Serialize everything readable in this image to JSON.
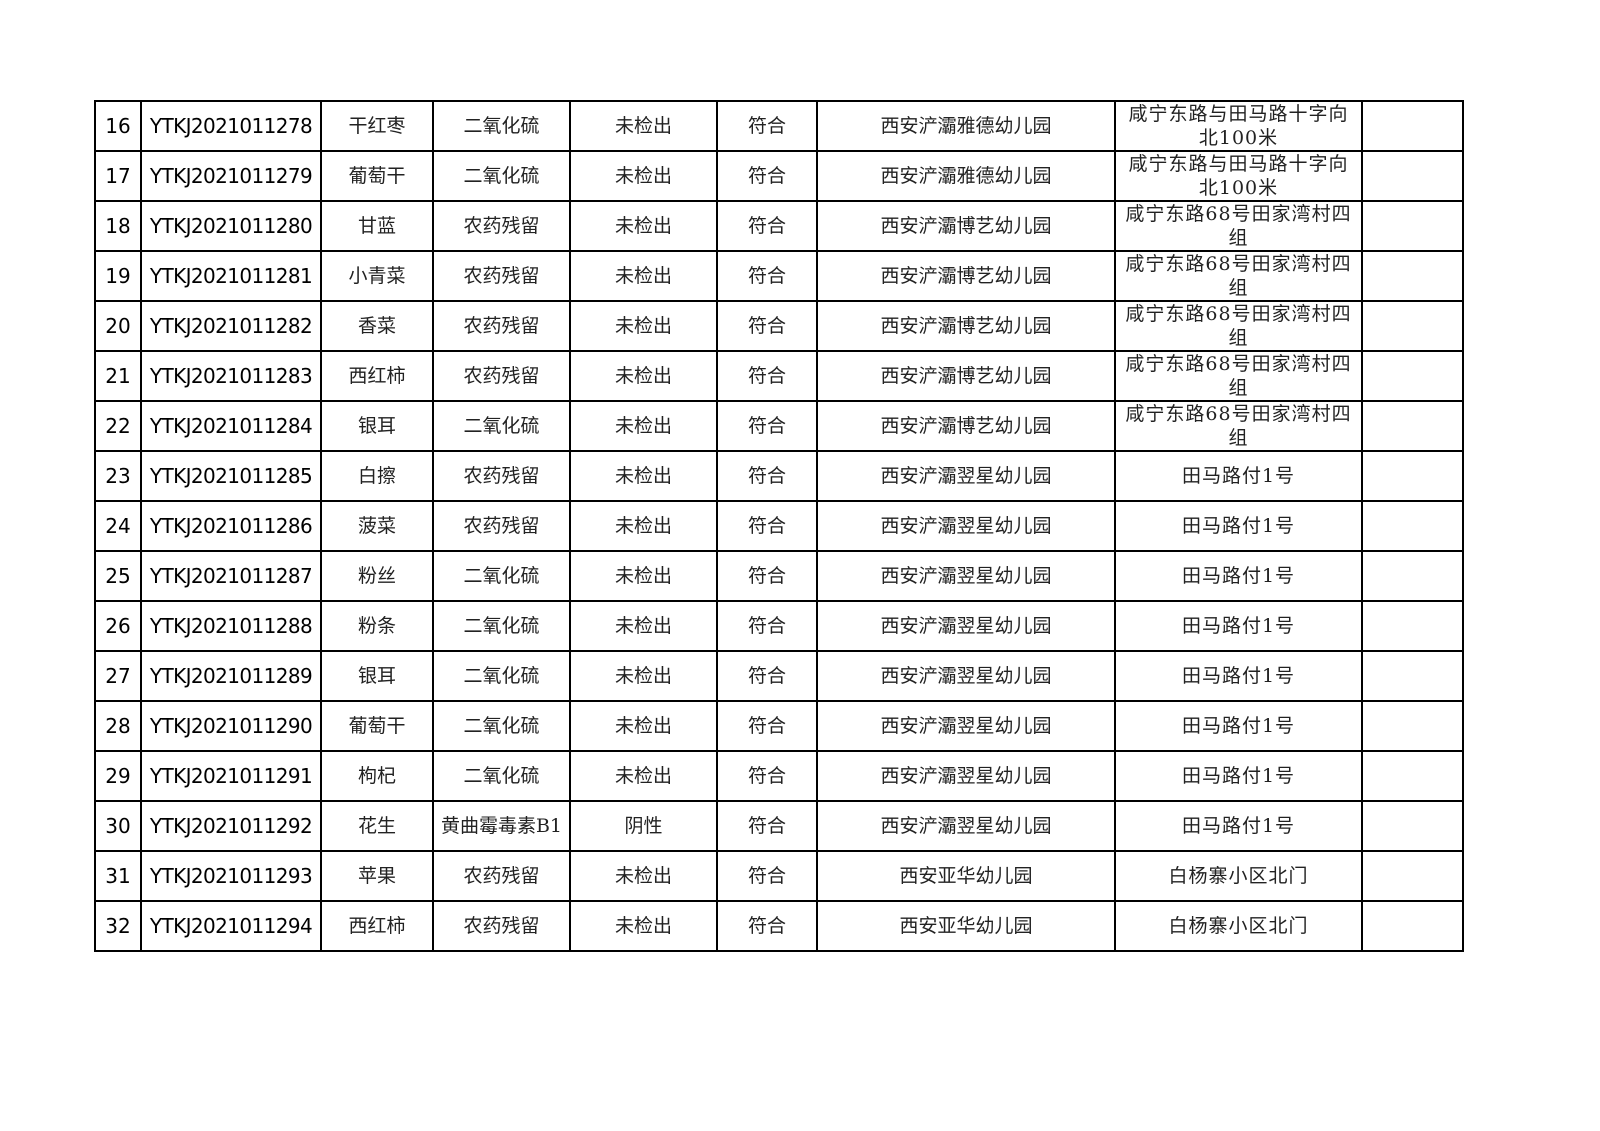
{
  "table": {
    "rows": [
      {
        "no": "16",
        "code": "YTKJ2021011278",
        "sample": "干红枣",
        "item": "二氧化硫",
        "result": "未检出",
        "judgment": "符合",
        "unit": "西安浐灞雅德幼儿园",
        "address": "咸宁东路与田马路十字向北100米",
        "remark": ""
      },
      {
        "no": "17",
        "code": "YTKJ2021011279",
        "sample": "葡萄干",
        "item": "二氧化硫",
        "result": "未检出",
        "judgment": "符合",
        "unit": "西安浐灞雅德幼儿园",
        "address": "咸宁东路与田马路十字向北100米",
        "remark": ""
      },
      {
        "no": "18",
        "code": "YTKJ2021011280",
        "sample": "甘蓝",
        "item": "农药残留",
        "result": "未检出",
        "judgment": "符合",
        "unit": "西安浐灞博艺幼儿园",
        "address": "咸宁东路68号田家湾村四组",
        "remark": ""
      },
      {
        "no": "19",
        "code": "YTKJ2021011281",
        "sample": "小青菜",
        "item": "农药残留",
        "result": "未检出",
        "judgment": "符合",
        "unit": "西安浐灞博艺幼儿园",
        "address": "咸宁东路68号田家湾村四组",
        "remark": ""
      },
      {
        "no": "20",
        "code": "YTKJ2021011282",
        "sample": "香菜",
        "item": "农药残留",
        "result": "未检出",
        "judgment": "符合",
        "unit": "西安浐灞博艺幼儿园",
        "address": "咸宁东路68号田家湾村四组",
        "remark": ""
      },
      {
        "no": "21",
        "code": "YTKJ2021011283",
        "sample": "西红柿",
        "item": "农药残留",
        "result": "未检出",
        "judgment": "符合",
        "unit": "西安浐灞博艺幼儿园",
        "address": "咸宁东路68号田家湾村四组",
        "remark": ""
      },
      {
        "no": "22",
        "code": "YTKJ2021011284",
        "sample": "银耳",
        "item": "二氧化硫",
        "result": "未检出",
        "judgment": "符合",
        "unit": "西安浐灞博艺幼儿园",
        "address": "咸宁东路68号田家湾村四组",
        "remark": ""
      },
      {
        "no": "23",
        "code": "YTKJ2021011285",
        "sample": "白擦",
        "item": "农药残留",
        "result": "未检出",
        "judgment": "符合",
        "unit": "西安浐灞翌星幼儿园",
        "address": "田马路付1号",
        "remark": ""
      },
      {
        "no": "24",
        "code": "YTKJ2021011286",
        "sample": "菠菜",
        "item": "农药残留",
        "result": "未检出",
        "judgment": "符合",
        "unit": "西安浐灞翌星幼儿园",
        "address": "田马路付1号",
        "remark": ""
      },
      {
        "no": "25",
        "code": "YTKJ2021011287",
        "sample": "粉丝",
        "item": "二氧化硫",
        "result": "未检出",
        "judgment": "符合",
        "unit": "西安浐灞翌星幼儿园",
        "address": "田马路付1号",
        "remark": ""
      },
      {
        "no": "26",
        "code": "YTKJ2021011288",
        "sample": "粉条",
        "item": "二氧化硫",
        "result": "未检出",
        "judgment": "符合",
        "unit": "西安浐灞翌星幼儿园",
        "address": "田马路付1号",
        "remark": ""
      },
      {
        "no": "27",
        "code": "YTKJ2021011289",
        "sample": "银耳",
        "item": "二氧化硫",
        "result": "未检出",
        "judgment": "符合",
        "unit": "西安浐灞翌星幼儿园",
        "address": "田马路付1号",
        "remark": ""
      },
      {
        "no": "28",
        "code": "YTKJ2021011290",
        "sample": "葡萄干",
        "item": "二氧化硫",
        "result": "未检出",
        "judgment": "符合",
        "unit": "西安浐灞翌星幼儿园",
        "address": "田马路付1号",
        "remark": ""
      },
      {
        "no": "29",
        "code": "YTKJ2021011291",
        "sample": "枸杞",
        "item": "二氧化硫",
        "result": "未检出",
        "judgment": "符合",
        "unit": "西安浐灞翌星幼儿园",
        "address": "田马路付1号",
        "remark": ""
      },
      {
        "no": "30",
        "code": "YTKJ2021011292",
        "sample": "花生",
        "item": "黄曲霉毒素B1",
        "result": "阴性",
        "judgment": "符合",
        "unit": "西安浐灞翌星幼儿园",
        "address": "田马路付1号",
        "remark": ""
      },
      {
        "no": "31",
        "code": "YTKJ2021011293",
        "sample": "苹果",
        "item": "农药残留",
        "result": "未检出",
        "judgment": "符合",
        "unit": "西安亚华幼儿园",
        "address": "白杨寨小区北门",
        "remark": ""
      },
      {
        "no": "32",
        "code": "YTKJ2021011294",
        "sample": "西红柿",
        "item": "农药残留",
        "result": "未检出",
        "judgment": "符合",
        "unit": "西安亚华幼儿园",
        "address": "白杨寨小区北门",
        "remark": ""
      }
    ]
  }
}
